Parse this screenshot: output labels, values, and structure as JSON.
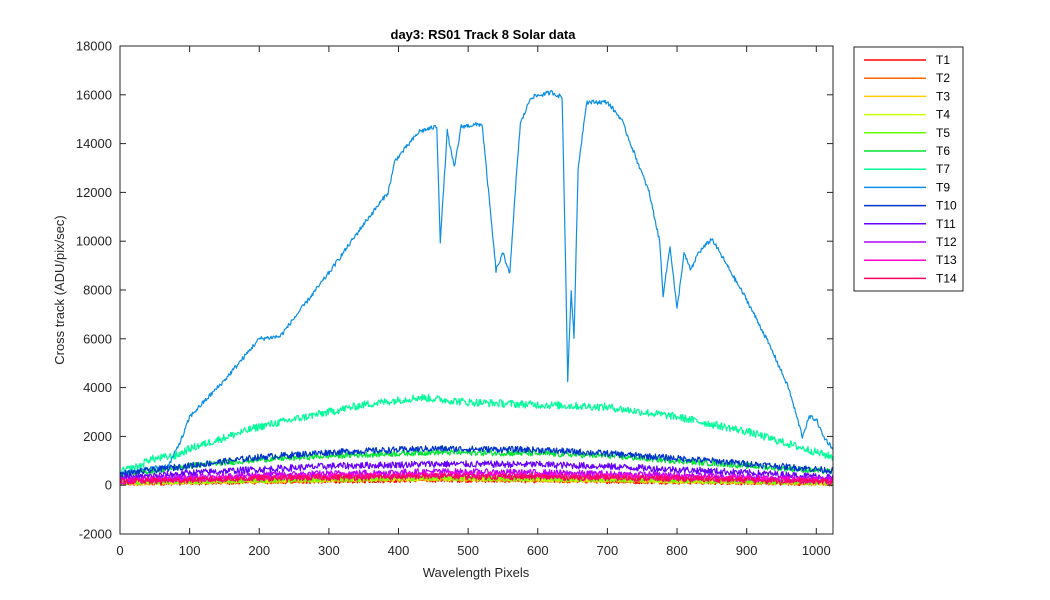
{
  "chart_data": {
    "type": "line",
    "title": "day3: RS01  Track 8 Solar data",
    "xlabel": "Wavelength Pixels",
    "ylabel": "Cross track (ADU/pix/sec)",
    "xlim": [
      0,
      1024
    ],
    "ylim": [
      -2000,
      18000
    ],
    "xticks": [
      0,
      100,
      200,
      300,
      400,
      500,
      600,
      700,
      800,
      900,
      1000
    ],
    "yticks": [
      -2000,
      0,
      2000,
      4000,
      6000,
      8000,
      10000,
      12000,
      14000,
      16000,
      18000
    ],
    "grid": false,
    "legend_position": "outside-right-top",
    "series": [
      {
        "name": "T1",
        "color": "#ff0000",
        "noise": 110,
        "points": [
          [
            0,
            80
          ],
          [
            200,
            150
          ],
          [
            450,
            230
          ],
          [
            700,
            180
          ],
          [
            1024,
            80
          ]
        ]
      },
      {
        "name": "T2",
        "color": "#ff6600",
        "noise": 110,
        "points": [
          [
            0,
            90
          ],
          [
            200,
            170
          ],
          [
            450,
            250
          ],
          [
            700,
            200
          ],
          [
            1024,
            90
          ]
        ]
      },
      {
        "name": "T3",
        "color": "#ffcc00",
        "noise": 110,
        "points": [
          [
            0,
            100
          ],
          [
            200,
            190
          ],
          [
            450,
            270
          ],
          [
            700,
            220
          ],
          [
            1024,
            100
          ]
        ]
      },
      {
        "name": "T4",
        "color": "#ccff00",
        "noise": 110,
        "points": [
          [
            0,
            110
          ],
          [
            200,
            200
          ],
          [
            450,
            290
          ],
          [
            700,
            230
          ],
          [
            1024,
            110
          ]
        ]
      },
      {
        "name": "T5",
        "color": "#66ff00",
        "noise": 120,
        "points": [
          [
            0,
            120
          ],
          [
            200,
            220
          ],
          [
            450,
            310
          ],
          [
            700,
            250
          ],
          [
            1024,
            120
          ]
        ]
      },
      {
        "name": "T6",
        "color": "#00e633",
        "noise": 120,
        "points": [
          [
            0,
            400
          ],
          [
            100,
            800
          ],
          [
            200,
            1050
          ],
          [
            300,
            1200
          ],
          [
            450,
            1350
          ],
          [
            600,
            1300
          ],
          [
            700,
            1200
          ],
          [
            850,
            900
          ],
          [
            1024,
            550
          ]
        ]
      },
      {
        "name": "T7",
        "color": "#00ff99",
        "noise": 160,
        "points": [
          [
            0,
            550
          ],
          [
            30,
            800
          ],
          [
            40,
            1050
          ],
          [
            80,
            1200
          ],
          [
            100,
            1500
          ],
          [
            200,
            2400
          ],
          [
            300,
            3000
          ],
          [
            350,
            3300
          ],
          [
            430,
            3600
          ],
          [
            500,
            3400
          ],
          [
            600,
            3300
          ],
          [
            700,
            3200
          ],
          [
            800,
            2800
          ],
          [
            900,
            2200
          ],
          [
            1024,
            1150
          ]
        ]
      },
      {
        "name": "T9",
        "color": "#0d8fe6",
        "noise": 90,
        "points": [
          [
            0,
            500
          ],
          [
            70,
            800
          ],
          [
            90,
            2000
          ],
          [
            100,
            2800
          ],
          [
            150,
            4300
          ],
          [
            200,
            6000
          ],
          [
            230,
            6100
          ],
          [
            300,
            8700
          ],
          [
            350,
            10700
          ],
          [
            385,
            12000
          ],
          [
            395,
            13300
          ],
          [
            430,
            14500
          ],
          [
            455,
            14700
          ],
          [
            460,
            10000
          ],
          [
            470,
            14500
          ],
          [
            480,
            13000
          ],
          [
            490,
            14700
          ],
          [
            520,
            14800
          ],
          [
            540,
            8800
          ],
          [
            550,
            9500
          ],
          [
            560,
            8700
          ],
          [
            570,
            13000
          ],
          [
            575,
            14800
          ],
          [
            590,
            15900
          ],
          [
            620,
            16100
          ],
          [
            635,
            15900
          ],
          [
            640,
            9000
          ],
          [
            643,
            4300
          ],
          [
            648,
            8000
          ],
          [
            652,
            6000
          ],
          [
            658,
            13000
          ],
          [
            670,
            15700
          ],
          [
            700,
            15700
          ],
          [
            720,
            15000
          ],
          [
            740,
            13500
          ],
          [
            760,
            12000
          ],
          [
            775,
            10000
          ],
          [
            780,
            7800
          ],
          [
            790,
            9800
          ],
          [
            800,
            7200
          ],
          [
            810,
            9500
          ],
          [
            820,
            8800
          ],
          [
            830,
            9500
          ],
          [
            850,
            10100
          ],
          [
            870,
            9100
          ],
          [
            880,
            8600
          ],
          [
            900,
            7600
          ],
          [
            925,
            6200
          ],
          [
            940,
            5300
          ],
          [
            960,
            4000
          ],
          [
            980,
            2000
          ],
          [
            990,
            2800
          ],
          [
            1000,
            2700
          ],
          [
            1010,
            2000
          ],
          [
            1024,
            1500
          ]
        ]
      },
      {
        "name": "T10",
        "color": "#0033cc",
        "noise": 130,
        "points": [
          [
            0,
            450
          ],
          [
            100,
            800
          ],
          [
            200,
            1150
          ],
          [
            300,
            1350
          ],
          [
            450,
            1500
          ],
          [
            600,
            1450
          ],
          [
            700,
            1300
          ],
          [
            850,
            1000
          ],
          [
            1024,
            600
          ]
        ]
      },
      {
        "name": "T11",
        "color": "#6600ff",
        "noise": 140,
        "points": [
          [
            0,
            280
          ],
          [
            100,
            500
          ],
          [
            200,
            650
          ],
          [
            300,
            780
          ],
          [
            450,
            870
          ],
          [
            600,
            850
          ],
          [
            700,
            770
          ],
          [
            850,
            580
          ],
          [
            1024,
            330
          ]
        ]
      },
      {
        "name": "T12",
        "color": "#b300ff",
        "noise": 130,
        "points": [
          [
            0,
            220
          ],
          [
            200,
            420
          ],
          [
            450,
            560
          ],
          [
            600,
            520
          ],
          [
            850,
            380
          ],
          [
            1024,
            230
          ]
        ]
      },
      {
        "name": "T13",
        "color": "#ff00cc",
        "noise": 130,
        "points": [
          [
            0,
            170
          ],
          [
            200,
            330
          ],
          [
            450,
            430
          ],
          [
            600,
            400
          ],
          [
            850,
            300
          ],
          [
            1024,
            180
          ]
        ]
      },
      {
        "name": "T14",
        "color": "#ff0066",
        "noise": 130,
        "points": [
          [
            0,
            150
          ],
          [
            200,
            280
          ],
          [
            450,
            370
          ],
          [
            600,
            340
          ],
          [
            850,
            250
          ],
          [
            1024,
            150
          ]
        ]
      }
    ]
  }
}
